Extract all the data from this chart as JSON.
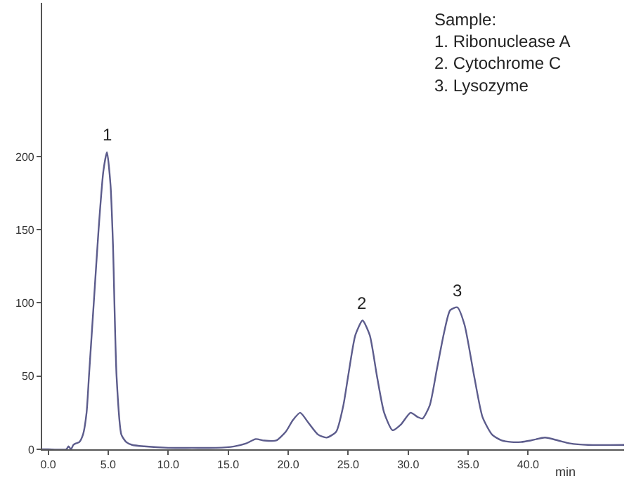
{
  "chart_data": {
    "type": "line",
    "xlabel": "min",
    "x": [
      -0.5,
      0,
      1.5,
      1.7,
      1.9,
      2.1,
      2.3,
      2.6,
      2.9,
      3.2,
      3.4,
      3.6,
      3.8,
      4.2,
      4.6,
      4.9,
      5.2,
      5.4,
      5.7,
      6.1,
      6.5,
      7,
      8,
      10,
      12,
      14,
      15.5,
      16.5,
      17.3,
      18,
      19,
      19.8,
      20.4,
      21,
      21.7,
      22.5,
      23.2,
      24,
      24.6,
      25,
      25.6,
      26.2,
      26.8,
      27.4,
      28,
      28.7,
      29.4,
      30.2,
      30.8,
      31.2,
      31.8,
      32.4,
      33,
      33.5,
      34.1,
      34.7,
      35.5,
      36.2,
      37,
      37.8,
      38.6,
      39.4,
      40.2,
      41.4,
      42.5,
      43.5,
      45,
      48
    ],
    "series": [
      {
        "color": "#5c5c8c",
        "values": [
          0,
          0,
          0,
          2,
          0,
          3,
          4,
          5,
          10,
          25,
          50,
          75,
          100,
          150,
          190,
          203,
          180,
          140,
          50,
          10,
          5,
          3,
          2,
          1,
          1,
          1,
          2,
          4,
          7,
          6,
          6,
          12,
          20,
          25,
          18,
          10,
          8,
          12,
          30,
          50,
          78,
          88,
          78,
          50,
          25,
          13,
          17,
          25,
          22,
          21,
          30,
          55,
          80,
          95,
          97,
          85,
          50,
          22,
          10,
          6,
          5,
          5,
          6,
          8,
          6,
          4,
          3,
          3
        ]
      }
    ],
    "xlim": [
      -0.5,
      48
    ],
    "xticks": [
      {
        "value": 0,
        "label": "0.0"
      },
      {
        "value": 5,
        "label": "5.0"
      },
      {
        "value": 10,
        "label": "10.0"
      },
      {
        "value": 15,
        "label": "15.0"
      },
      {
        "value": 20,
        "label": "20.0"
      },
      {
        "value": 25,
        "label": "25.0"
      },
      {
        "value": 30,
        "label": "30.0"
      },
      {
        "value": 35,
        "label": "35.0"
      },
      {
        "value": 40,
        "label": "40.0"
      }
    ],
    "ylim": [
      0,
      305
    ],
    "yticks": [
      0,
      50,
      100,
      150,
      200
    ],
    "grid": false,
    "marker": "none",
    "line_style": "solid",
    "annotations": [
      {
        "text": "1",
        "x": 4.9,
        "y": 203
      },
      {
        "text": "2",
        "x": 26.2,
        "y": 88
      },
      {
        "text": "3",
        "x": 34.1,
        "y": 97
      },
      "Sample:\n1. Ribonuclease A\n2. Cytochrome C\n3. Lysozyme"
    ]
  }
}
